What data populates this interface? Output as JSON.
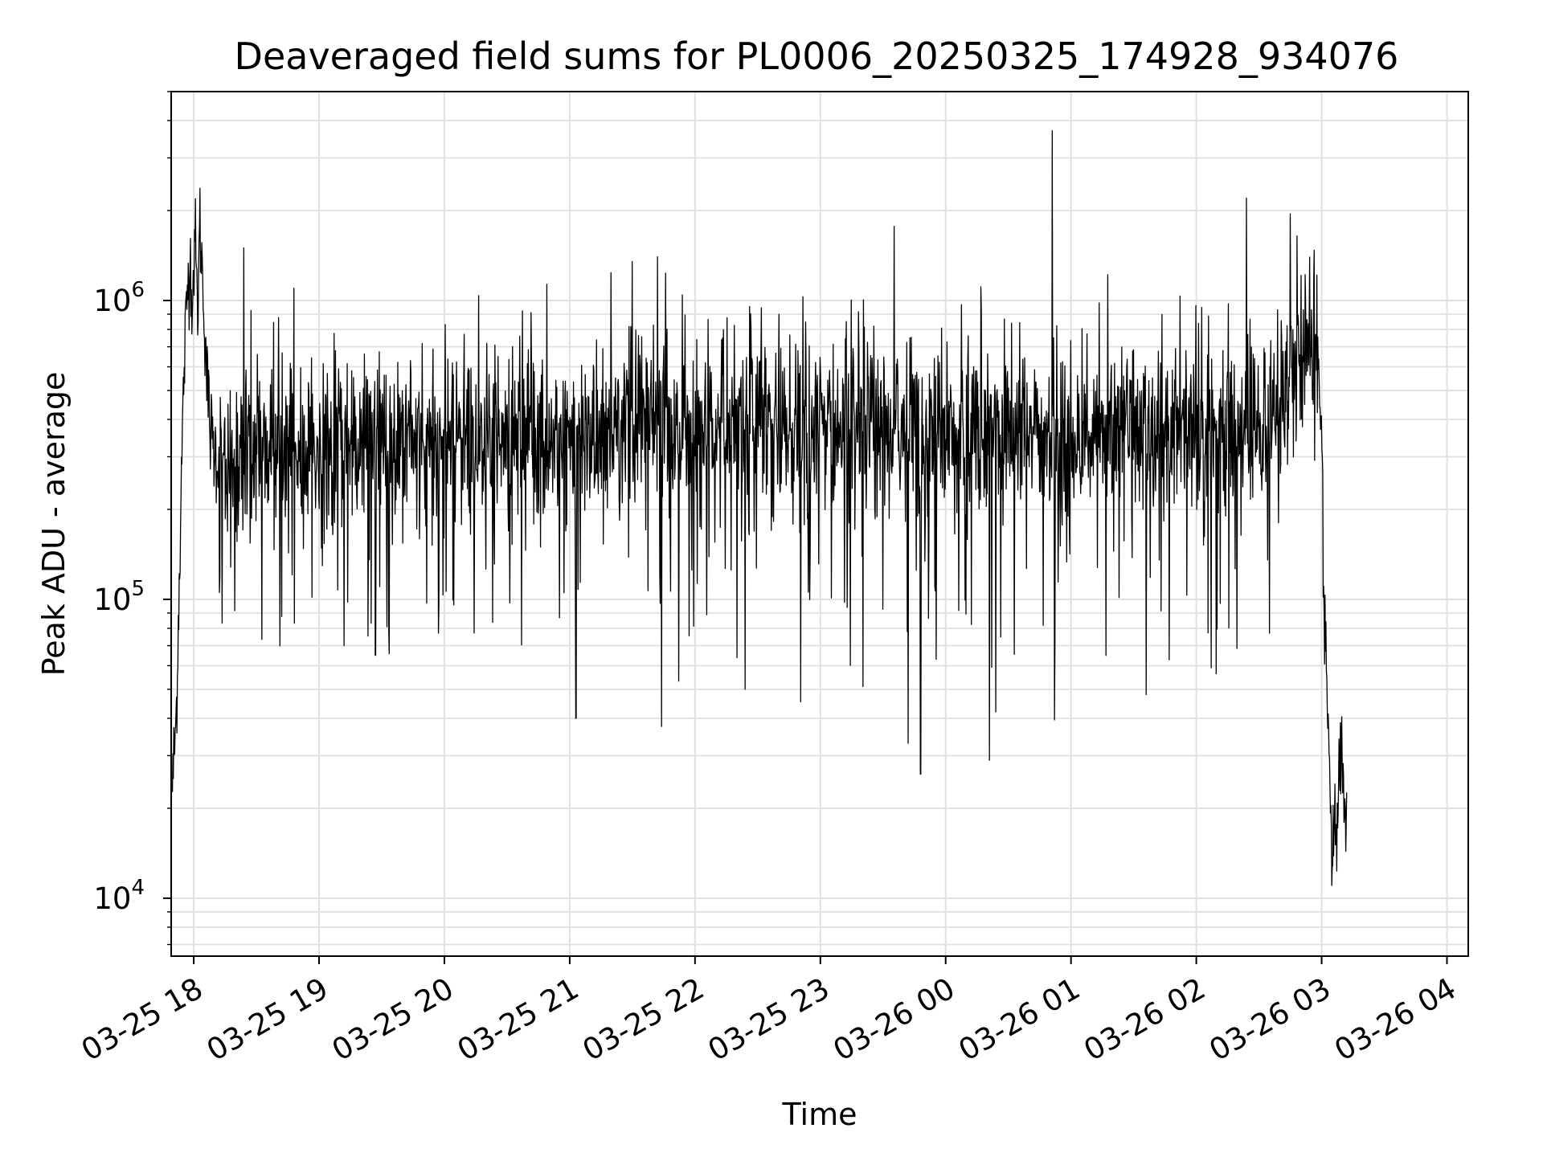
{
  "chart_data": {
    "type": "line",
    "title": "Deaveraged field sums for PL0006_20250325_174928_934076",
    "xlabel": "Time",
    "ylabel": "Peak ADU - average",
    "x_range": [
      "03-25 17:49",
      "03-26 04:10"
    ],
    "y_scale": "log",
    "ylim": [
      6400,
      5000000
    ],
    "grid": true,
    "line_color": "#000000",
    "x_ticks": [
      "03-25 18",
      "03-25 19",
      "03-25 20",
      "03-25 21",
      "03-25 22",
      "03-25 23",
      "03-26 00",
      "03-26 01",
      "03-26 02",
      "03-26 03",
      "03-26 04"
    ],
    "y_ticks": [
      {
        "value": 10000,
        "base": "10",
        "exp": "4"
      },
      {
        "value": 100000,
        "base": "10",
        "exp": "5"
      },
      {
        "value": 1000000,
        "base": "10",
        "exp": "6"
      }
    ],
    "series": [
      {
        "x_unit": "hours after 03-25 17:00",
        "points": [
          [
            0.83,
            24000
          ],
          [
            0.86,
            40000
          ],
          [
            0.89,
            150000
          ],
          [
            0.92,
            550000
          ],
          [
            0.95,
            1100000
          ],
          [
            0.97,
            1400000
          ],
          [
            0.99,
            1000000
          ],
          [
            1.01,
            1700000
          ],
          [
            1.03,
            900000
          ],
          [
            1.05,
            1800000
          ],
          [
            1.07,
            1200000
          ],
          [
            1.09,
            800000
          ],
          [
            1.11,
            500000
          ],
          [
            1.13,
            380000
          ],
          [
            1.16,
            320000
          ],
          [
            1.2,
            290000
          ],
          [
            1.5,
            330000
          ],
          [
            2.0,
            300000
          ],
          [
            2.5,
            350000
          ],
          [
            3.0,
            330000
          ],
          [
            3.5,
            360000
          ],
          [
            4.0,
            340000
          ],
          [
            4.5,
            370000
          ],
          [
            5.0,
            350000
          ],
          [
            5.5,
            380000
          ],
          [
            6.0,
            360000
          ],
          [
            6.5,
            370000
          ],
          [
            7.0,
            360000
          ],
          [
            7.5,
            380000
          ],
          [
            8.0,
            350000
          ],
          [
            8.5,
            360000
          ],
          [
            9.0,
            350000
          ],
          [
            9.5,
            370000
          ],
          [
            9.7,
            500000
          ],
          [
            9.8,
            650000
          ],
          [
            9.9,
            850000
          ],
          [
            9.96,
            700000
          ],
          [
            10.0,
            380000
          ],
          [
            10.02,
            100000
          ],
          [
            10.04,
            60000
          ],
          [
            10.06,
            30000
          ],
          [
            10.08,
            12000
          ],
          [
            10.1,
            20000
          ],
          [
            10.12,
            15000
          ],
          [
            10.14,
            26000
          ],
          [
            10.16,
            38000
          ],
          [
            10.18,
            20000
          ],
          [
            10.2,
            17000
          ]
        ],
        "spikes": [
          [
            1.4,
            1500000
          ],
          [
            1.8,
            1100000
          ],
          [
            2.45,
            65000
          ],
          [
            4.05,
            40000
          ],
          [
            4.5,
            1350000
          ],
          [
            4.7,
            1400000
          ],
          [
            6.8,
            26000
          ],
          [
            6.7,
            33000
          ],
          [
            7.4,
            42000
          ],
          [
            7.85,
            3700000
          ],
          [
            9.4,
            2200000
          ],
          [
            9.75,
            1950000
          ],
          [
            2.2,
            70000
          ],
          [
            5.4,
            50000
          ],
          [
            8.6,
            48000
          ]
        ]
      }
    ]
  }
}
